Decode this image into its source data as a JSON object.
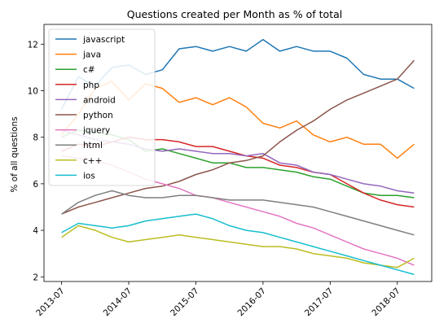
{
  "chart_data": {
    "type": "line",
    "title": "Questions created per Month as % of total",
    "xlabel": "",
    "ylabel": "% of all questions",
    "x_range": [
      "2013-07",
      "2018-10"
    ],
    "ylim": [
      1.8,
      12.85
    ],
    "x_ticks": [
      "2013-07",
      "2014-07",
      "2015-07",
      "2016-07",
      "2017-07",
      "2018-07"
    ],
    "y_ticks": [
      2,
      4,
      6,
      8,
      10,
      12
    ],
    "grid": false,
    "legend_position": "top-left",
    "x": [
      "2013-07",
      "2013-10",
      "2014-01",
      "2014-04",
      "2014-07",
      "2014-10",
      "2015-01",
      "2015-04",
      "2015-07",
      "2015-10",
      "2016-01",
      "2016-04",
      "2016-07",
      "2016-10",
      "2017-01",
      "2017-04",
      "2017-07",
      "2017-10",
      "2018-01",
      "2018-04",
      "2018-07",
      "2018-10"
    ],
    "series": [
      {
        "name": "javascript",
        "color": "#1f77b4",
        "values": [
          9.2,
          10.6,
          10.2,
          11.0,
          11.1,
          10.7,
          10.9,
          11.8,
          11.9,
          11.7,
          11.9,
          11.7,
          12.2,
          11.7,
          11.9,
          11.7,
          11.7,
          11.4,
          10.7,
          10.5,
          10.5,
          10.1
        ]
      },
      {
        "name": "java",
        "color": "#ff7f0e",
        "values": [
          8.1,
          9.0,
          10.1,
          10.4,
          9.6,
          10.3,
          10.1,
          9.5,
          9.7,
          9.4,
          9.7,
          9.3,
          8.6,
          8.4,
          8.7,
          8.1,
          7.8,
          8.0,
          7.7,
          7.7,
          7.1,
          7.7
        ]
      },
      {
        "name": "c#",
        "color": "#2ca02c",
        "values": [
          8.0,
          8.3,
          8.2,
          8.1,
          7.9,
          7.4,
          7.5,
          7.3,
          7.1,
          6.9,
          6.9,
          6.7,
          6.7,
          6.6,
          6.5,
          6.3,
          6.2,
          5.9,
          5.6,
          5.5,
          5.5,
          5.4
        ]
      },
      {
        "name": "php",
        "color": "#d62728",
        "values": [
          7.4,
          7.7,
          7.6,
          7.8,
          8.0,
          7.9,
          7.9,
          7.8,
          7.6,
          7.6,
          7.4,
          7.2,
          7.1,
          6.8,
          6.7,
          6.5,
          6.4,
          6.0,
          5.6,
          5.3,
          5.1,
          5.0
        ]
      },
      {
        "name": "android",
        "color": "#9467bd",
        "values": [
          8.3,
          8.1,
          7.9,
          7.8,
          7.7,
          7.5,
          7.4,
          7.5,
          7.4,
          7.3,
          7.3,
          7.2,
          7.3,
          6.9,
          6.8,
          6.5,
          6.4,
          6.2,
          6.0,
          5.9,
          5.7,
          5.6
        ]
      },
      {
        "name": "python",
        "color": "#8c564b",
        "values": [
          4.7,
          5.0,
          5.2,
          5.4,
          5.6,
          5.8,
          5.9,
          6.1,
          6.4,
          6.6,
          6.9,
          7.0,
          7.2,
          7.8,
          8.3,
          8.7,
          9.2,
          9.6,
          9.9,
          10.2,
          10.5,
          11.3
        ]
      },
      {
        "name": "jquery",
        "color": "#e377c2",
        "values": [
          7.2,
          7.1,
          7.0,
          6.8,
          6.5,
          6.2,
          6.0,
          5.8,
          5.5,
          5.4,
          5.2,
          5.0,
          4.8,
          4.6,
          4.3,
          4.1,
          3.8,
          3.5,
          3.2,
          3.0,
          2.8,
          2.5
        ]
      },
      {
        "name": "html",
        "color": "#7f7f7f",
        "values": [
          4.7,
          5.2,
          5.5,
          5.7,
          5.5,
          5.4,
          5.4,
          5.5,
          5.5,
          5.4,
          5.3,
          5.3,
          5.3,
          5.2,
          5.1,
          5.0,
          4.8,
          4.6,
          4.4,
          4.2,
          4.0,
          3.8
        ]
      },
      {
        "name": "c++",
        "color": "#bcbd22",
        "values": [
          3.7,
          4.2,
          4.0,
          3.7,
          3.5,
          3.6,
          3.7,
          3.8,
          3.7,
          3.6,
          3.5,
          3.4,
          3.3,
          3.3,
          3.2,
          3.0,
          2.9,
          2.8,
          2.6,
          2.5,
          2.4,
          2.8
        ]
      },
      {
        "name": "ios",
        "color": "#17becf",
        "values": [
          3.9,
          4.3,
          4.2,
          4.1,
          4.2,
          4.4,
          4.5,
          4.6,
          4.7,
          4.5,
          4.2,
          4.0,
          3.9,
          3.7,
          3.5,
          3.3,
          3.1,
          2.9,
          2.7,
          2.5,
          2.3,
          2.1
        ]
      }
    ]
  }
}
